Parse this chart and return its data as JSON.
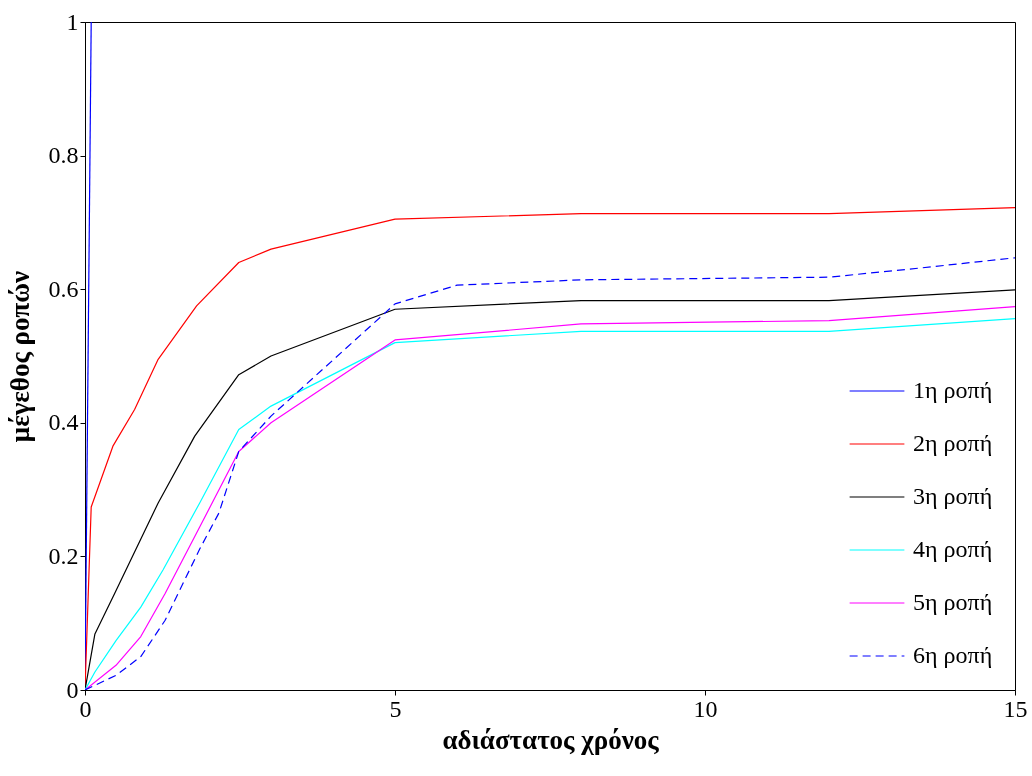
{
  "chart_data": {
    "type": "line",
    "xlabel": "αδιάστατος χρόνος",
    "ylabel": "μέγεθος ροπών",
    "xlim": [
      0,
      15
    ],
    "ylim": [
      0,
      1
    ],
    "xticks": [
      0,
      5,
      10,
      15
    ],
    "yticks": [
      0,
      0.2,
      0.4,
      0.6,
      0.8,
      1
    ],
    "grid": false,
    "legend": "bottom right",
    "line_style": "solid",
    "series": [
      {
        "name": "1η ροπή",
        "color": "#0000ff",
        "x": [
          0,
          0.05,
          0.1
        ],
        "values": [
          0,
          0.5,
          1
        ]
      },
      {
        "name": "2η ροπή",
        "color": "#ff0000",
        "x": [
          0,
          0.1,
          0.45,
          0.8,
          1.18,
          1.8,
          2.48,
          3,
          5,
          8,
          12,
          15
        ],
        "values": [
          0,
          0.274,
          0.365,
          0.42,
          0.495,
          0.575,
          0.64,
          0.66,
          0.705,
          0.713,
          0.713,
          0.722
        ]
      },
      {
        "name": "3η ροπή",
        "color": "#000000",
        "x": [
          0,
          0.16,
          0.48,
          1.18,
          1.77,
          2.48,
          3,
          5,
          8,
          12,
          15
        ],
        "values": [
          0,
          0.084,
          0.145,
          0.28,
          0.38,
          0.472,
          0.5,
          0.57,
          0.583,
          0.583,
          0.599
        ]
      },
      {
        "name": "4η ροπή",
        "color": "#00ffff",
        "x": [
          0,
          0.16,
          0.5,
          0.9,
          1.26,
          1.85,
          2.48,
          3,
          5,
          8,
          12,
          15
        ],
        "values": [
          0,
          0.027,
          0.074,
          0.124,
          0.18,
          0.28,
          0.39,
          0.425,
          0.52,
          0.537,
          0.537,
          0.556
        ]
      },
      {
        "name": "5η ροπή",
        "color": "#ff00ff",
        "x": [
          0,
          0.5,
          0.9,
          1.29,
          1.85,
          2.48,
          3,
          5,
          8,
          12,
          15
        ],
        "values": [
          0,
          0.037,
          0.08,
          0.144,
          0.244,
          0.357,
          0.4,
          0.524,
          0.548,
          0.553,
          0.574
        ]
      },
      {
        "name": "6η ροπή",
        "color": "#0000ff",
        "line_style": "dashed",
        "x": [
          0,
          0.5,
          0.9,
          1.29,
          1.85,
          2.16,
          2.48,
          3,
          5,
          6,
          8,
          12,
          13.5,
          15
        ],
        "values": [
          0,
          0.022,
          0.05,
          0.104,
          0.211,
          0.265,
          0.357,
          0.41,
          0.578,
          0.606,
          0.614,
          0.618,
          0.632,
          0.647
        ]
      }
    ]
  }
}
